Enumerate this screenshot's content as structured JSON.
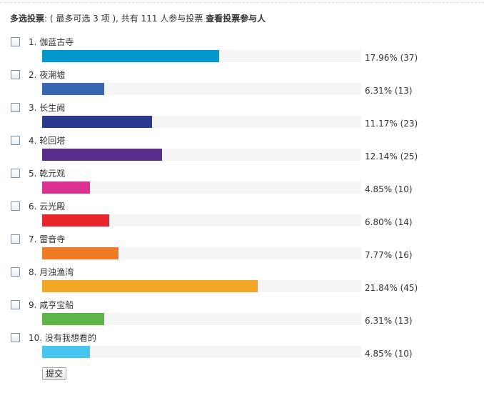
{
  "header": {
    "title": "多选投票",
    "rule": ": ( 最多可选 3 项 ), 共有 111 人参与投票",
    "link": "查看投票参与人"
  },
  "options": [
    {
      "label": "1.  伽蓝古寺",
      "percent": 17.96,
      "votes": 37,
      "result": "17.96% (37)",
      "color": "#0098cc"
    },
    {
      "label": "2.  夜潮墟",
      "percent": 6.31,
      "votes": 13,
      "result": "6.31% (13)",
      "color": "#3667b0"
    },
    {
      "label": "3.  长生阙",
      "percent": 11.17,
      "votes": 23,
      "result": "11.17% (23)",
      "color": "#2b3a8e"
    },
    {
      "label": "4.  轮回塔",
      "percent": 12.14,
      "votes": 25,
      "result": "12.14% (25)",
      "color": "#582d8c"
    },
    {
      "label": "5.  乾元观",
      "percent": 4.85,
      "votes": 10,
      "result": "4.85% (10)",
      "color": "#dc3192"
    },
    {
      "label": "6.  云光殿",
      "percent": 6.8,
      "votes": 14,
      "result": "6.80% (14)",
      "color": "#e8262b"
    },
    {
      "label": "7.  雷音寺",
      "percent": 7.77,
      "votes": 16,
      "result": "7.77% (16)",
      "color": "#f07b25"
    },
    {
      "label": "8.  月浊渔湾",
      "percent": 21.84,
      "votes": 45,
      "result": "21.84% (45)",
      "color": "#f2a726"
    },
    {
      "label": "9.  咸亨宝船",
      "percent": 6.31,
      "votes": 13,
      "result": "6.31% (13)",
      "color": "#5cb546"
    },
    {
      "label": "10.  没有我想看的",
      "percent": 4.85,
      "votes": 10,
      "result": "4.85% (10)",
      "color": "#46c6ef"
    }
  ],
  "submit_label": "提交"
}
